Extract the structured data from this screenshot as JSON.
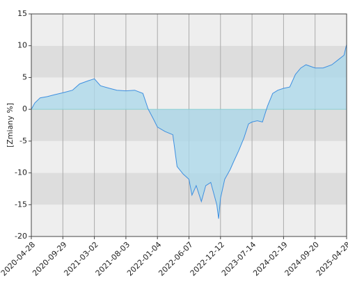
{
  "chart_data": {
    "type": "area",
    "y_label": "[Zmiany %]",
    "x": [
      "2020-04-28",
      "2020-05-15",
      "2020-06-10",
      "2020-07-15",
      "2020-08-20",
      "2020-09-29",
      "2020-11-15",
      "2020-12-20",
      "2021-02-01",
      "2021-03-02",
      "2021-04-01",
      "2021-05-15",
      "2021-06-20",
      "2021-08-03",
      "2021-09-15",
      "2021-10-25",
      "2021-11-20",
      "2021-12-15",
      "2022-01-04",
      "2022-02-10",
      "2022-03-20",
      "2022-04-10",
      "2022-05-10",
      "2022-06-07",
      "2022-06-25",
      "2022-07-20",
      "2022-08-20",
      "2022-09-15",
      "2022-10-15",
      "2022-11-20",
      "2022-12-01",
      "2022-12-12",
      "2023-01-10",
      "2023-02-15",
      "2023-03-10",
      "2023-04-15",
      "2023-05-20",
      "2023-06-20",
      "2023-07-14",
      "2023-08-20",
      "2023-09-25",
      "2023-10-30",
      "2023-12-05",
      "2024-01-10",
      "2024-02-19",
      "2024-04-01",
      "2024-05-10",
      "2024-06-15",
      "2024-07-20",
      "2024-09-20",
      "2024-11-15",
      "2025-01-15",
      "2025-03-01",
      "2025-04-10",
      "2025-04-28"
    ],
    "values": [
      0,
      1,
      1.8,
      2.0,
      2.3,
      2.6,
      3.0,
      4.0,
      4.5,
      4.8,
      3.7,
      3.3,
      3.0,
      2.9,
      3.0,
      2.5,
      0,
      -1.5,
      -2.8,
      -3.5,
      -4.0,
      -9.0,
      -10.2,
      -11,
      -13.5,
      -12,
      -14.5,
      -12,
      -11.5,
      -15,
      -17.2,
      -14,
      -11,
      -9.5,
      -8.3,
      -6.5,
      -4.5,
      -2.3,
      -2.0,
      -1.8,
      -2.0,
      0.5,
      2.5,
      3.0,
      3.3,
      3.5,
      5.5,
      6.5,
      7.0,
      6.5,
      6.5,
      7.0,
      7.8,
      8.5,
      10.2
    ],
    "color": "#3d8fe0",
    "fill_color": "#add8ea",
    "xlim": [
      "2020-04-28",
      "2025-04-28"
    ],
    "xticks": [
      "2020-04-28",
      "2020-09-29",
      "2021-03-02",
      "2021-08-03",
      "2022-01-04",
      "2022-06-07",
      "2022-12-12",
      "2023-07-14",
      "2024-02-19",
      "2024-09-20",
      "2025-04-28"
    ],
    "ylim": [
      -20,
      15
    ],
    "yticks": [
      -20,
      -15,
      -10,
      -5,
      0,
      5,
      10,
      15
    ],
    "band_colors": [
      "#eeeeee",
      "#dddddd"
    ],
    "grid": true
  }
}
